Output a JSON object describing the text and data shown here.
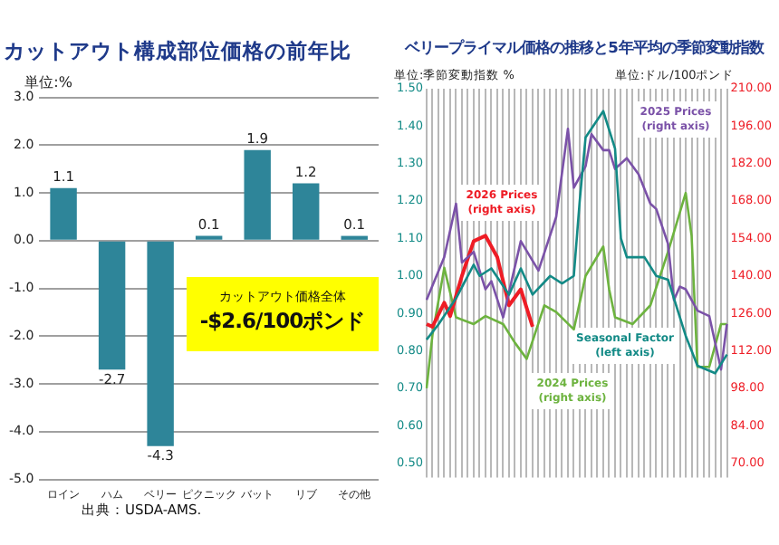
{
  "chart_data": [
    {
      "type": "bar",
      "title": "カットアウト構成部位価格の前年比",
      "ylabel": "単位:%",
      "categories": [
        "ロイン",
        "ハム",
        "ベリー",
        "ピクニック",
        "バット",
        "リブ",
        "その他"
      ],
      "values": [
        1.1,
        -2.7,
        -4.3,
        0.1,
        1.9,
        1.2,
        0.1
      ],
      "color": "#2e8599",
      "data_labels": true,
      "ylim": [
        -5,
        3
      ],
      "yticks": [
        {
          "value": -5,
          "label": "-5.0"
        },
        {
          "value": -4,
          "label": "-4.0"
        },
        {
          "value": -3,
          "label": "-3.0"
        },
        {
          "value": -2,
          "label": "-2.0"
        },
        {
          "value": -1,
          "label": "-1.0"
        },
        {
          "value": 0,
          "label": "0.0"
        },
        {
          "value": 1,
          "label": "1.0"
        },
        {
          "value": 2,
          "label": "2.0"
        },
        {
          "value": 3,
          "label": "3.0"
        }
      ],
      "grid": "y",
      "annotations": [
        "カットアウト価格全体",
        "-$2.6/100ポンド",
        "出典：USDA-AMS."
      ]
    },
    {
      "type": "line",
      "title": "ベリープライマル価格の推移と5年平均の季節変動指数",
      "ylabel": "単位:季節変動指数 %",
      "y2label": "単位:ドル/100ポンド",
      "categories": [
        null,
        null,
        null,
        null,
        null,
        null,
        null,
        null,
        null,
        null,
        null,
        null,
        null,
        null,
        null,
        null,
        null,
        null,
        null,
        null,
        null,
        null,
        null,
        null,
        null,
        null,
        null,
        null,
        null,
        null,
        null,
        null,
        null,
        null,
        null,
        null,
        null,
        null,
        null,
        null,
        null,
        null,
        null,
        null,
        null,
        null,
        null,
        null,
        null,
        null,
        null,
        null
      ],
      "series": [
        {
          "name": "Seasonal Factor (left axis)",
          "color": "#138a86",
          "axis": "y",
          "values": [
            0.83,
            null,
            0.87,
            null,
            null,
            0.94,
            null,
            null,
            1.03,
            1.0,
            null,
            1.02,
            null,
            null,
            0.95,
            null,
            1.02,
            null,
            0.95,
            null,
            null,
            1.0,
            null,
            0.98,
            null,
            1.0,
            1.2,
            1.37,
            null,
            null,
            1.44,
            null,
            1.34,
            1.1,
            1.05,
            null,
            null,
            1.05,
            null,
            1.0,
            null,
            0.99,
            null,
            null,
            0.84,
            null,
            0.76,
            null,
            null,
            0.74,
            null,
            0.79
          ]
        },
        {
          "name": "2025 Prices (right axis)",
          "color": "#7b52a8",
          "axis": "y2",
          "values": [
            131,
            null,
            null,
            147,
            null,
            167,
            145,
            null,
            149,
            null,
            135,
            138,
            null,
            124.5,
            null,
            null,
            153,
            null,
            null,
            142,
            null,
            null,
            162,
            null,
            195,
            173,
            null,
            181,
            193,
            null,
            187,
            187,
            180,
            null,
            184,
            null,
            178,
            null,
            167,
            165,
            null,
            152,
            131,
            136,
            135,
            null,
            127,
            null,
            125,
            null,
            105,
            122
          ]
        },
        {
          "name": "2026 Prices (right axis)",
          "color": "#ee1c25",
          "axis": "y2",
          "values": [
            122,
            121,
            null,
            130,
            125,
            null,
            140,
            null,
            153,
            null,
            155,
            null,
            147,
            null,
            129,
            null,
            135,
            null,
            121,
            null,
            null,
            null,
            null,
            null,
            null,
            null,
            null,
            null,
            null,
            null,
            null,
            null,
            null,
            null,
            null,
            null,
            null,
            null,
            null,
            null,
            null,
            null,
            null,
            null,
            null,
            null,
            null,
            null,
            null,
            null,
            null,
            null
          ]
        },
        {
          "name": "2024 Prices (right axis)",
          "color": "#6db33f",
          "axis": "y2",
          "values": [
            98,
            118,
            null,
            143,
            null,
            124.5,
            null,
            null,
            122,
            null,
            125,
            null,
            null,
            122,
            null,
            115,
            null,
            109,
            null,
            null,
            129,
            null,
            126.5,
            null,
            null,
            120,
            null,
            140,
            null,
            null,
            151,
            135,
            124.5,
            null,
            null,
            122,
            null,
            null,
            129,
            null,
            null,
            149,
            null,
            null,
            171,
            155,
            106,
            null,
            106,
            null,
            122,
            122
          ]
        }
      ],
      "ylim": [
        0.5,
        1.5
      ],
      "yticks": [
        {
          "value": 0.5,
          "label": "0.50"
        },
        {
          "value": 0.6,
          "label": "0.60"
        },
        {
          "value": 0.7,
          "label": "0.70"
        },
        {
          "value": 0.8,
          "label": "0.80"
        },
        {
          "value": 0.9,
          "label": "0.90"
        },
        {
          "value": 1.0,
          "label": "1.00"
        },
        {
          "value": 1.1,
          "label": "1.10"
        },
        {
          "value": 1.2,
          "label": "1.20"
        },
        {
          "value": 1.3,
          "label": "1.30"
        },
        {
          "value": 1.4,
          "label": "1.40"
        },
        {
          "value": 1.5,
          "label": "1.50"
        }
      ],
      "y2lim": [
        70,
        210
      ],
      "y2ticks": [
        {
          "value": 70,
          "label": "70.00"
        },
        {
          "value": 84,
          "label": "84.00"
        },
        {
          "value": 98,
          "label": "98.00"
        },
        {
          "value": 112,
          "label": "112.00"
        },
        {
          "value": 126,
          "label": "126.00"
        },
        {
          "value": 140,
          "label": "140.00"
        },
        {
          "value": 154,
          "label": "154.00"
        },
        {
          "value": 168,
          "label": "168.00"
        },
        {
          "value": 182,
          "label": "182.00"
        },
        {
          "value": 196,
          "label": "196.00"
        },
        {
          "value": 210,
          "label": "210.00"
        }
      ],
      "grid": "x",
      "marker": "none"
    }
  ]
}
